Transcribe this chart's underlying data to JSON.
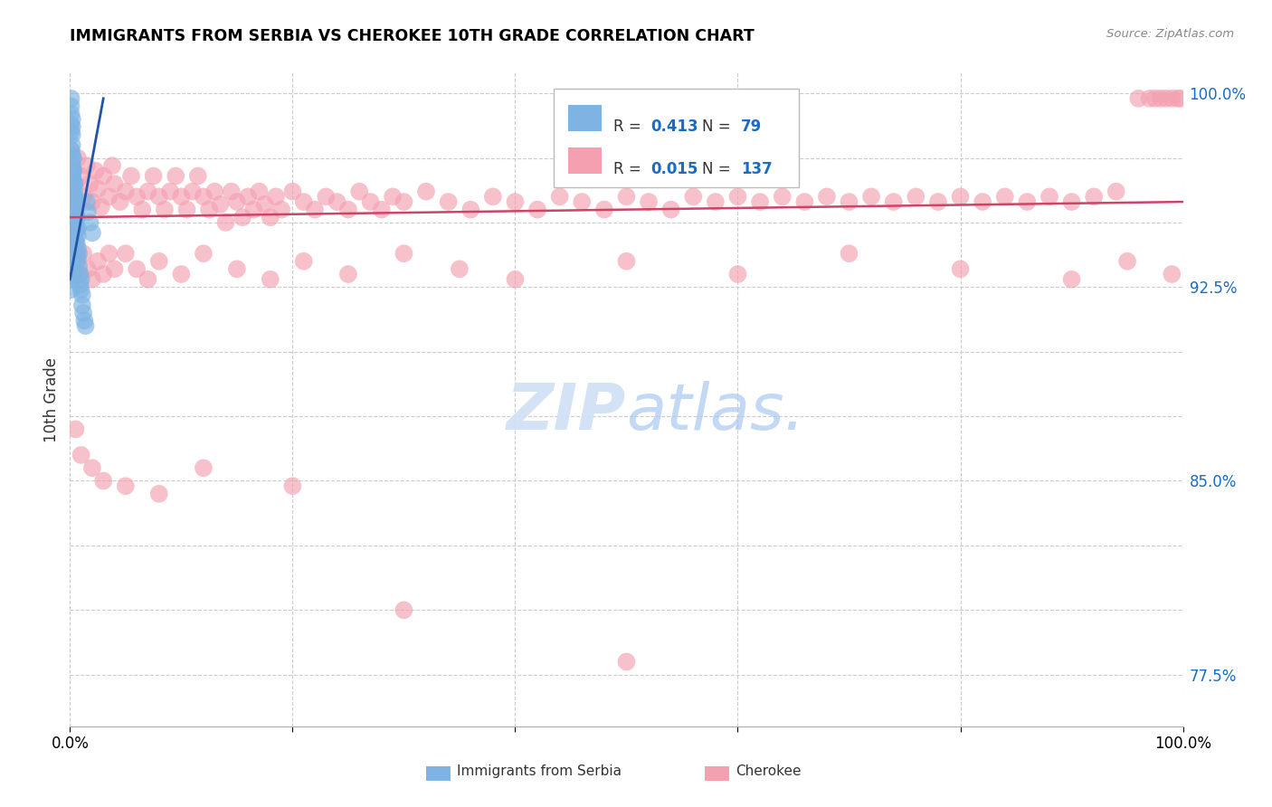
{
  "title": "IMMIGRANTS FROM SERBIA VS CHEROKEE 10TH GRADE CORRELATION CHART",
  "source_text": "Source: ZipAtlas.com",
  "ylabel": "10th Grade",
  "xlim": [
    0.0,
    1.0
  ],
  "ylim": [
    0.755,
    1.008
  ],
  "serbia_R": 0.413,
  "serbia_N": 79,
  "cherokee_R": 0.015,
  "cherokee_N": 137,
  "blue_color": "#7EB3E3",
  "pink_color": "#F4A0B0",
  "blue_line_color": "#2255AA",
  "pink_line_color": "#CC4466",
  "watermark_color": "#D0DFF5",
  "grid_color": "#CCCCCC",
  "ytick_positions": [
    0.775,
    0.8,
    0.825,
    0.85,
    0.875,
    0.9,
    0.925,
    0.95,
    0.975,
    1.0
  ],
  "ytick_labels": [
    "77.5%",
    "",
    "",
    "85.0%",
    "",
    "",
    "92.5%",
    "",
    "",
    "100.0%"
  ],
  "serbia_x": [
    0.001,
    0.001,
    0.001,
    0.001,
    0.001,
    0.002,
    0.002,
    0.002,
    0.002,
    0.002,
    0.002,
    0.002,
    0.003,
    0.003,
    0.003,
    0.003,
    0.003,
    0.003,
    0.003,
    0.004,
    0.004,
    0.004,
    0.004,
    0.004,
    0.005,
    0.005,
    0.005,
    0.005,
    0.006,
    0.006,
    0.006,
    0.006,
    0.007,
    0.007,
    0.007,
    0.008,
    0.008,
    0.009,
    0.009,
    0.01,
    0.01,
    0.011,
    0.011,
    0.012,
    0.013,
    0.014,
    0.015,
    0.016,
    0.018,
    0.02,
    0.001,
    0.001,
    0.002,
    0.002,
    0.003,
    0.003,
    0.004,
    0.005,
    0.006,
    0.007,
    0.001,
    0.001,
    0.002,
    0.002,
    0.003,
    0.004,
    0.005,
    0.001,
    0.002,
    0.003,
    0.001,
    0.002,
    0.003,
    0.001,
    0.002,
    0.001,
    0.002,
    0.001,
    0.001
  ],
  "serbia_y": [
    0.998,
    0.995,
    0.992,
    0.988,
    0.985,
    0.99,
    0.987,
    0.984,
    0.98,
    0.976,
    0.972,
    0.968,
    0.975,
    0.97,
    0.965,
    0.96,
    0.956,
    0.952,
    0.948,
    0.965,
    0.96,
    0.955,
    0.95,
    0.946,
    0.958,
    0.953,
    0.948,
    0.943,
    0.952,
    0.947,
    0.942,
    0.938,
    0.945,
    0.94,
    0.936,
    0.938,
    0.933,
    0.93,
    0.926,
    0.928,
    0.924,
    0.922,
    0.918,
    0.915,
    0.912,
    0.91,
    0.958,
    0.954,
    0.95,
    0.946,
    0.968,
    0.964,
    0.966,
    0.962,
    0.964,
    0.96,
    0.958,
    0.955,
    0.952,
    0.948,
    0.975,
    0.97,
    0.972,
    0.968,
    0.966,
    0.962,
    0.958,
    0.978,
    0.974,
    0.97,
    0.94,
    0.936,
    0.932,
    0.935,
    0.93,
    0.938,
    0.934,
    0.928,
    0.924
  ],
  "cherokee_x": [
    0.001,
    0.003,
    0.005,
    0.007,
    0.01,
    0.012,
    0.015,
    0.018,
    0.02,
    0.023,
    0.025,
    0.028,
    0.03,
    0.035,
    0.038,
    0.04,
    0.045,
    0.05,
    0.055,
    0.06,
    0.065,
    0.07,
    0.075,
    0.08,
    0.085,
    0.09,
    0.095,
    0.1,
    0.105,
    0.11,
    0.115,
    0.12,
    0.125,
    0.13,
    0.135,
    0.14,
    0.145,
    0.15,
    0.155,
    0.16,
    0.165,
    0.17,
    0.175,
    0.18,
    0.185,
    0.19,
    0.2,
    0.21,
    0.22,
    0.23,
    0.24,
    0.25,
    0.26,
    0.27,
    0.28,
    0.29,
    0.3,
    0.32,
    0.34,
    0.36,
    0.38,
    0.4,
    0.42,
    0.44,
    0.46,
    0.48,
    0.5,
    0.52,
    0.54,
    0.56,
    0.58,
    0.6,
    0.62,
    0.64,
    0.66,
    0.68,
    0.7,
    0.72,
    0.74,
    0.76,
    0.78,
    0.8,
    0.82,
    0.84,
    0.86,
    0.88,
    0.9,
    0.92,
    0.94,
    0.96,
    0.97,
    0.975,
    0.98,
    0.985,
    0.99,
    0.995,
    0.998,
    0.003,
    0.006,
    0.009,
    0.012,
    0.016,
    0.02,
    0.025,
    0.03,
    0.035,
    0.04,
    0.05,
    0.06,
    0.07,
    0.08,
    0.1,
    0.12,
    0.15,
    0.18,
    0.21,
    0.25,
    0.3,
    0.35,
    0.4,
    0.5,
    0.6,
    0.7,
    0.8,
    0.9,
    0.95,
    0.99,
    0.005,
    0.01,
    0.02,
    0.03,
    0.05,
    0.08,
    0.12,
    0.2,
    0.3,
    0.5
  ],
  "cherokee_y": [
    0.978,
    0.97,
    0.965,
    0.975,
    0.968,
    0.96,
    0.972,
    0.965,
    0.958,
    0.97,
    0.963,
    0.956,
    0.968,
    0.96,
    0.972,
    0.965,
    0.958,
    0.962,
    0.968,
    0.96,
    0.955,
    0.962,
    0.968,
    0.96,
    0.955,
    0.962,
    0.968,
    0.96,
    0.955,
    0.962,
    0.968,
    0.96,
    0.955,
    0.962,
    0.957,
    0.95,
    0.962,
    0.958,
    0.952,
    0.96,
    0.955,
    0.962,
    0.957,
    0.952,
    0.96,
    0.955,
    0.962,
    0.958,
    0.955,
    0.96,
    0.958,
    0.955,
    0.962,
    0.958,
    0.955,
    0.96,
    0.958,
    0.962,
    0.958,
    0.955,
    0.96,
    0.958,
    0.955,
    0.96,
    0.958,
    0.955,
    0.96,
    0.958,
    0.955,
    0.96,
    0.958,
    0.96,
    0.958,
    0.96,
    0.958,
    0.96,
    0.958,
    0.96,
    0.958,
    0.96,
    0.958,
    0.96,
    0.958,
    0.96,
    0.958,
    0.96,
    0.958,
    0.96,
    0.962,
    0.998,
    0.998,
    0.998,
    0.998,
    0.998,
    0.998,
    0.998,
    0.998,
    0.94,
    0.935,
    0.93,
    0.938,
    0.932,
    0.928,
    0.935,
    0.93,
    0.938,
    0.932,
    0.938,
    0.932,
    0.928,
    0.935,
    0.93,
    0.938,
    0.932,
    0.928,
    0.935,
    0.93,
    0.938,
    0.932,
    0.928,
    0.935,
    0.93,
    0.938,
    0.932,
    0.928,
    0.935,
    0.93,
    0.87,
    0.86,
    0.855,
    0.85,
    0.848,
    0.845,
    0.855,
    0.848,
    0.8,
    0.78
  ]
}
